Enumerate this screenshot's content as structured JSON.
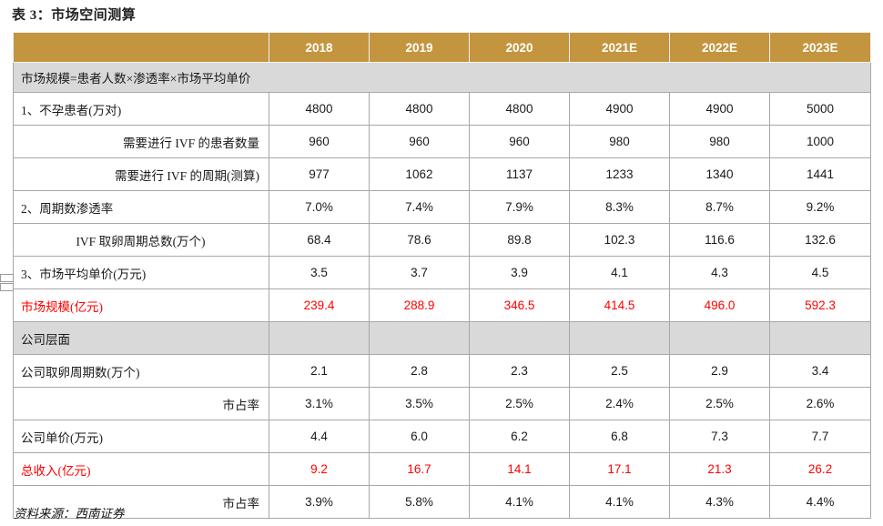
{
  "title": "表 3：市场空间测算",
  "source": "资料来源：西南证券",
  "colors": {
    "header_bg": "#C4953F",
    "section_bg": "#D9D9D9",
    "highlight_red": "#FF0000",
    "border": "#A8A8A8"
  },
  "table": {
    "years": [
      "2018",
      "2019",
      "2020",
      "2021E",
      "2022E",
      "2023E"
    ],
    "formula_note": "市场规模=患者人数×渗透率×市场平均单价",
    "section1": [
      {
        "label": "1、不孕患者(万对)",
        "align": "left",
        "values": [
          "4800",
          "4800",
          "4800",
          "4900",
          "4900",
          "5000"
        ]
      },
      {
        "label": "需要进行 IVF 的患者数量",
        "align": "right",
        "values": [
          "960",
          "960",
          "960",
          "980",
          "980",
          "1000"
        ]
      },
      {
        "label": "需要进行 IVF 的周期(测算)",
        "align": "right",
        "values": [
          "977",
          "1062",
          "1137",
          "1233",
          "1340",
          "1441"
        ]
      },
      {
        "label": "2、周期数渗透率",
        "align": "left",
        "values": [
          "7.0%",
          "7.4%",
          "7.9%",
          "8.3%",
          "8.7%",
          "9.2%"
        ]
      },
      {
        "label": "IVF 取卵周期总数(万个)",
        "align": "center",
        "values": [
          "68.4",
          "78.6",
          "89.8",
          "102.3",
          "116.6",
          "132.6"
        ]
      },
      {
        "label": "3、市场平均单价(万元)",
        "align": "left",
        "values": [
          "3.5",
          "3.7",
          "3.9",
          "4.1",
          "4.3",
          "4.5"
        ]
      }
    ],
    "section2": [
      {
        "label": "市场规模(亿元)",
        "align": "left",
        "color": "red",
        "values": [
          "239.4",
          "288.9",
          "346.5",
          "414.5",
          "496.0",
          "592.3"
        ]
      },
      {
        "label": "公司层面",
        "align": "left",
        "bg": "gray",
        "values": [
          "",
          "",
          "",
          "",
          "",
          ""
        ]
      },
      {
        "label": "公司取卵周期数(万个)",
        "align": "left",
        "values": [
          "2.1",
          "2.8",
          "2.3",
          "2.5",
          "2.9",
          "3.4"
        ]
      },
      {
        "label": "市占率",
        "align": "right",
        "values": [
          "3.1%",
          "3.5%",
          "2.5%",
          "2.4%",
          "2.5%",
          "2.6%"
        ]
      },
      {
        "label": "公司单价(万元)",
        "align": "left",
        "values": [
          "4.4",
          "6.0",
          "6.2",
          "6.8",
          "7.3",
          "7.7"
        ]
      },
      {
        "label": "总收入(亿元)",
        "align": "left",
        "color": "red",
        "values": [
          "9.2",
          "16.7",
          "14.1",
          "17.1",
          "21.3",
          "26.2"
        ]
      },
      {
        "label": "市占率",
        "align": "right",
        "values": [
          "3.9%",
          "5.8%",
          "4.1%",
          "4.1%",
          "4.3%",
          "4.4%"
        ]
      }
    ]
  }
}
